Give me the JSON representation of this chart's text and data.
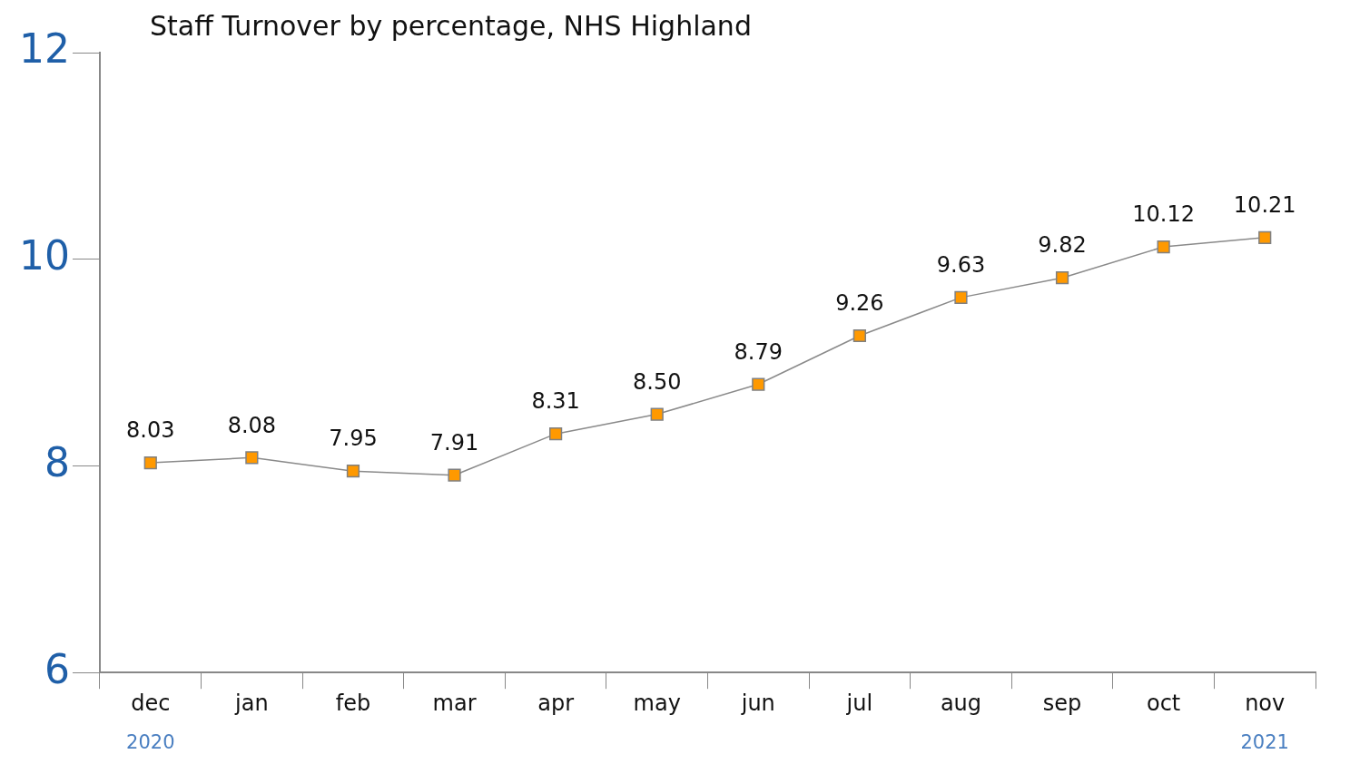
{
  "chart_data": {
    "type": "line",
    "title": "Staff Turnover by percentage, NHS Highland",
    "categories": [
      "dec",
      "jan",
      "feb",
      "mar",
      "apr",
      "may",
      "jun",
      "jul",
      "aug",
      "sep",
      "oct",
      "nov"
    ],
    "series": [
      {
        "color": "#ff9900",
        "values": [
          8.03,
          8.08,
          7.95,
          7.91,
          8.31,
          8.5,
          8.79,
          9.26,
          9.63,
          9.82,
          10.12,
          10.21
        ],
        "value_labels": [
          "8.03",
          "8.08",
          "7.95",
          "7.91",
          "8.31",
          "8.50",
          "8.79",
          "9.26",
          "9.63",
          "9.82",
          "10.12",
          "10.21"
        ]
      }
    ],
    "ylim": [
      6,
      12
    ],
    "yticks": [
      6,
      8,
      10,
      12
    ],
    "grid": false,
    "legend": false,
    "marker": "square",
    "line_style": "solid",
    "annotations": [
      "2020",
      "2021"
    ]
  }
}
